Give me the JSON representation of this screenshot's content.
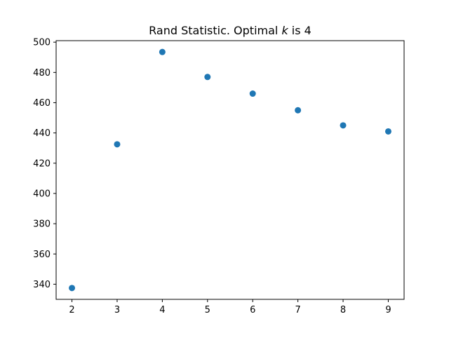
{
  "chart_data": {
    "type": "scatter",
    "title": {
      "prefix": "Rand Statistic. Optimal ",
      "variable": "k",
      "suffix": " is 4"
    },
    "xlabel": "",
    "ylabel": "",
    "x": [
      2,
      3,
      4,
      5,
      6,
      7,
      8,
      9
    ],
    "y": [
      337.5,
      432.5,
      493.5,
      477,
      466,
      455,
      445,
      441
    ],
    "xlim": [
      1.65,
      9.35
    ],
    "ylim": [
      330,
      501
    ],
    "xticks": [
      "2",
      "3",
      "4",
      "5",
      "6",
      "7",
      "8",
      "9"
    ],
    "yticks": [
      "340",
      "360",
      "380",
      "400",
      "420",
      "440",
      "460",
      "480",
      "500"
    ],
    "grid": false,
    "legend": "none",
    "marker_color": "#1f77b4"
  }
}
